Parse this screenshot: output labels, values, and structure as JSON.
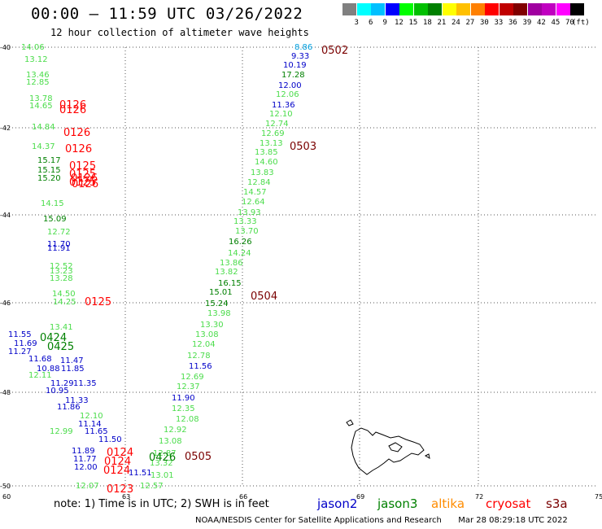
{
  "header": {
    "title": "00:00 — 11:59 UTC 03/26/2022",
    "subtitle": "12 hour collection of altimeter wave heights"
  },
  "color_scale": {
    "colors": [
      "#808080",
      "#00ffff",
      "#00c0ff",
      "#0000ff",
      "#00ff00",
      "#00c000",
      "#008000",
      "#ffff00",
      "#ffc000",
      "#ff8000",
      "#ff0000",
      "#c00000",
      "#800000",
      "#a000a0",
      "#c000c0",
      "#ff00ff",
      "#000000"
    ],
    "labels": [
      "3",
      "6",
      "9",
      "12",
      "15",
      "18",
      "21",
      "24",
      "27",
      "30",
      "33",
      "36",
      "39",
      "42",
      "45",
      "70"
    ],
    "unit": "(ft)"
  },
  "axes": {
    "lat_labels": [
      "-40",
      "-42",
      "-44",
      "-46",
      "-48",
      "-50"
    ],
    "lon_labels": [
      "60",
      "63",
      "66",
      "69",
      "72",
      "75"
    ]
  },
  "colors": {
    "jason2": "#0000c8",
    "jason3": "#008000",
    "altika": "#ff8c00",
    "cryosat": "#ff0000",
    "s3a": "#7a0000",
    "light_green": "#4bdc4b",
    "cyan": "#00a0e0"
  },
  "measurements": [
    {
      "v": "8.86",
      "c": "#00a0e0"
    },
    {
      "v": "9.33",
      "c": "#0000c8"
    },
    {
      "v": "10.19",
      "c": "#0000c8"
    },
    {
      "v": "17.28",
      "c": "#008000"
    },
    {
      "v": "12.00",
      "c": "#0000c8"
    },
    {
      "v": "12.06",
      "c": "#4bdc4b"
    },
    {
      "v": "11.36",
      "c": "#0000c8"
    },
    {
      "v": "12.10",
      "c": "#4bdc4b"
    },
    {
      "v": "12.74",
      "c": "#4bdc4b"
    },
    {
      "v": "12.69",
      "c": "#4bdc4b"
    },
    {
      "v": "13.13",
      "c": "#4bdc4b"
    },
    {
      "v": "13.85",
      "c": "#4bdc4b"
    },
    {
      "v": "14.60",
      "c": "#4bdc4b"
    },
    {
      "v": "13.83",
      "c": "#4bdc4b"
    },
    {
      "v": "12.84",
      "c": "#4bdc4b"
    },
    {
      "v": "14.57",
      "c": "#4bdc4b"
    },
    {
      "v": "12.64",
      "c": "#4bdc4b"
    },
    {
      "v": "13.93",
      "c": "#4bdc4b"
    },
    {
      "v": "13.33",
      "c": "#4bdc4b"
    },
    {
      "v": "13.70",
      "c": "#4bdc4b"
    },
    {
      "v": "16.26",
      "c": "#008000"
    },
    {
      "v": "14.24",
      "c": "#4bdc4b"
    },
    {
      "v": "13.86",
      "c": "#4bdc4b"
    },
    {
      "v": "13.82",
      "c": "#4bdc4b"
    },
    {
      "v": "16.15",
      "c": "#008000"
    },
    {
      "v": "15.01",
      "c": "#008000"
    },
    {
      "v": "15.24",
      "c": "#008000"
    },
    {
      "v": "13.98",
      "c": "#4bdc4b"
    },
    {
      "v": "13.30",
      "c": "#4bdc4b"
    },
    {
      "v": "13.08",
      "c": "#4bdc4b"
    },
    {
      "v": "12.04",
      "c": "#4bdc4b"
    },
    {
      "v": "12.78",
      "c": "#4bdc4b"
    },
    {
      "v": "11.56",
      "c": "#0000c8"
    },
    {
      "v": "12.69",
      "c": "#4bdc4b"
    },
    {
      "v": "12.37",
      "c": "#4bdc4b"
    },
    {
      "v": "11.90",
      "c": "#0000c8"
    },
    {
      "v": "12.35",
      "c": "#4bdc4b"
    },
    {
      "v": "12.08",
      "c": "#4bdc4b"
    },
    {
      "v": "12.92",
      "c": "#4bdc4b"
    },
    {
      "v": "13.08",
      "c": "#4bdc4b"
    },
    {
      "v": "12.87",
      "c": "#4bdc4b"
    },
    {
      "v": "13.32",
      "c": "#4bdc4b"
    },
    {
      "v": "11.51",
      "c": "#0000c8"
    },
    {
      "v": "13.01",
      "c": "#4bdc4b"
    },
    {
      "v": "12.57",
      "c": "#4bdc4b"
    },
    {
      "v": "12.07",
      "c": "#4bdc4b"
    },
    {
      "v": "14.06",
      "c": "#4bdc4b"
    },
    {
      "v": "13.12",
      "c": "#4bdc4b"
    },
    {
      "v": "13.46",
      "c": "#4bdc4b"
    },
    {
      "v": "12.85",
      "c": "#4bdc4b"
    },
    {
      "v": "13.78",
      "c": "#4bdc4b"
    },
    {
      "v": "14.65",
      "c": "#4bdc4b"
    },
    {
      "v": "14.84",
      "c": "#4bdc4b"
    },
    {
      "v": "14.37",
      "c": "#4bdc4b"
    },
    {
      "v": "15.17",
      "c": "#008000"
    },
    {
      "v": "15.15",
      "c": "#008000"
    },
    {
      "v": "15.20",
      "c": "#008000"
    },
    {
      "v": "14.15",
      "c": "#4bdc4b"
    },
    {
      "v": "15.09",
      "c": "#008000"
    },
    {
      "v": "12.72",
      "c": "#4bdc4b"
    },
    {
      "v": "11.70",
      "c": "#0000c8"
    },
    {
      "v": "11.91",
      "c": "#0000c8"
    },
    {
      "v": "12.52",
      "c": "#4bdc4b"
    },
    {
      "v": "13.23",
      "c": "#4bdc4b"
    },
    {
      "v": "13.28",
      "c": "#4bdc4b"
    },
    {
      "v": "14.50",
      "c": "#4bdc4b"
    },
    {
      "v": "14.25",
      "c": "#4bdc4b"
    },
    {
      "v": "13.41",
      "c": "#4bdc4b"
    },
    {
      "v": "11.55",
      "c": "#0000c8"
    },
    {
      "v": "11.69",
      "c": "#0000c8"
    },
    {
      "v": "11.27",
      "c": "#0000c8"
    },
    {
      "v": "11.68",
      "c": "#0000c8"
    },
    {
      "v": "11.47",
      "c": "#0000c8"
    },
    {
      "v": "10.88",
      "c": "#0000c8"
    },
    {
      "v": "11.85",
      "c": "#0000c8"
    },
    {
      "v": "12.11",
      "c": "#4bdc4b"
    },
    {
      "v": "11.29",
      "c": "#0000c8"
    },
    {
      "v": "11.35",
      "c": "#0000c8"
    },
    {
      "v": "10.95",
      "c": "#0000c8"
    },
    {
      "v": "11.33",
      "c": "#0000c8"
    },
    {
      "v": "11.86",
      "c": "#0000c8"
    },
    {
      "v": "12.10",
      "c": "#4bdc4b"
    },
    {
      "v": "11.14",
      "c": "#0000c8"
    },
    {
      "v": "12.99",
      "c": "#4bdc4b"
    },
    {
      "v": "11.65",
      "c": "#0000c8"
    },
    {
      "v": "11.50",
      "c": "#0000c8"
    },
    {
      "v": "11.89",
      "c": "#0000c8"
    },
    {
      "v": "11.77",
      "c": "#0000c8"
    },
    {
      "v": "12.00",
      "c": "#0000c8"
    }
  ],
  "passes": [
    {
      "id": "0502",
      "c": "#7a0000"
    },
    {
      "id": "0503",
      "c": "#7a0000"
    },
    {
      "id": "0504",
      "c": "#7a0000"
    },
    {
      "id": "0505",
      "c": "#7a0000"
    },
    {
      "id": "0126",
      "c": "#ff0000"
    },
    {
      "id": "0126",
      "c": "#ff0000"
    },
    {
      "id": "0126",
      "c": "#ff0000"
    },
    {
      "id": "0126",
      "c": "#ff0000"
    },
    {
      "id": "0125",
      "c": "#ff0000"
    },
    {
      "id": "0125",
      "c": "#ff0000"
    },
    {
      "id": "0125",
      "c": "#ff0000"
    },
    {
      "id": "0126",
      "c": "#ff0000"
    },
    {
      "id": "0126",
      "c": "#ff0000"
    },
    {
      "id": "0125",
      "c": "#ff0000"
    },
    {
      "id": "0424",
      "c": "#008000"
    },
    {
      "id": "0425",
      "c": "#008000"
    },
    {
      "id": "0124",
      "c": "#ff0000"
    },
    {
      "id": "0124",
      "c": "#ff0000"
    },
    {
      "id": "0124",
      "c": "#ff0000"
    },
    {
      "id": "0123",
      "c": "#ff0000"
    },
    {
      "id": "0426",
      "c": "#008000"
    }
  ],
  "note": "note: 1) Time is in UTC; 2) SWH is in feet",
  "legend": [
    {
      "label": "jason2",
      "color": "#0000c8"
    },
    {
      "label": "jason3",
      "color": "#008000"
    },
    {
      "label": "altika",
      "color": "#ff8c00"
    },
    {
      "label": "cryosat",
      "color": "#ff0000"
    },
    {
      "label": "s3a",
      "color": "#7a0000"
    }
  ],
  "footer": {
    "credit": "NOAA/NESDIS Center for Satellite Applications and Research",
    "timestamp": "Mar 28 08:29:18 UTC 2022"
  }
}
